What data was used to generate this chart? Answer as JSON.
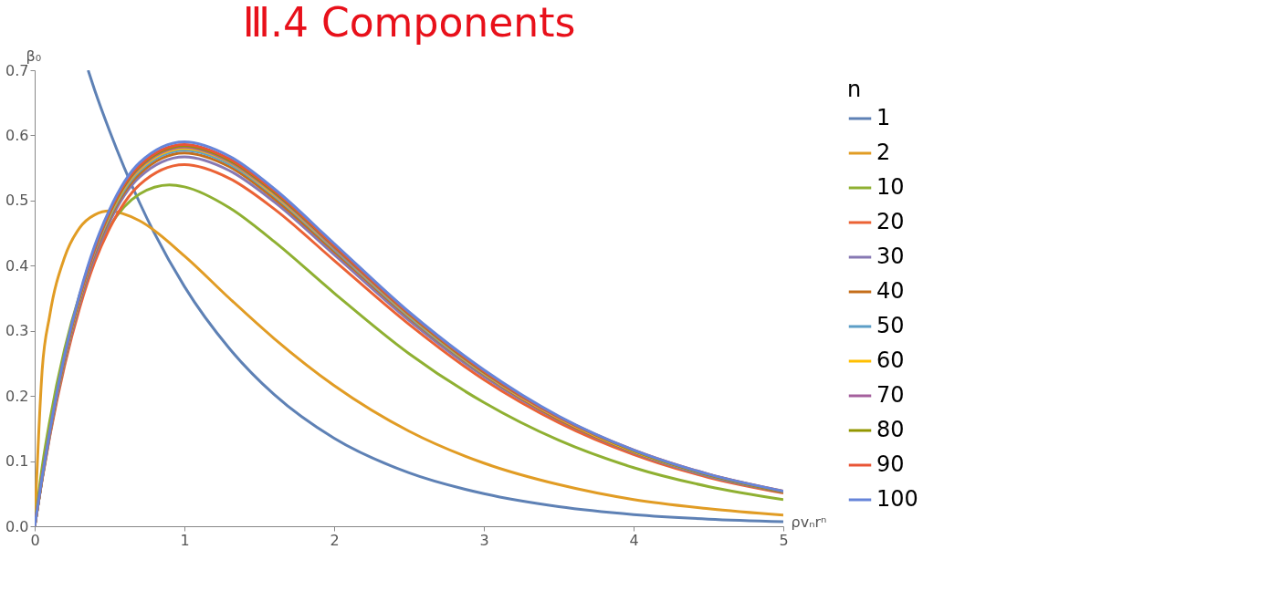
{
  "chart_data": {
    "type": "line",
    "title": "Ⅲ.4 Components",
    "xlabel": "ρvₙrⁿ",
    "ylabel": "β₀",
    "legend_title": "n",
    "legend": "right",
    "x": [
      0,
      0.05,
      0.1,
      0.2,
      0.3,
      0.4,
      0.5,
      0.7,
      1,
      1.3,
      1.6,
      2,
      2.5,
      3,
      3.5,
      4,
      4.5,
      5
    ],
    "xlim": [
      0,
      5
    ],
    "xticks": [
      0,
      1,
      2,
      3,
      4,
      5
    ],
    "ylim": [
      0,
      0.7
    ],
    "yticks": [
      {
        "value": 0,
        "label": "0.0"
      },
      0.1,
      0.2,
      0.3,
      0.4,
      0.5,
      0.6,
      0.7
    ],
    "series": [
      {
        "name": "1",
        "color": "#5e81b5",
        "x": [
          0.357,
          0.4,
          0.5,
          0.7,
          1,
          1.3,
          1.6,
          2,
          2.5,
          3,
          3.5,
          4,
          4.5,
          5
        ],
        "values": [
          0.7,
          0.67,
          0.607,
          0.497,
          0.368,
          0.273,
          0.202,
          0.135,
          0.082,
          0.05,
          0.03,
          0.018,
          0.011,
          0.007
        ]
      },
      {
        "name": "2",
        "color": "#e19c24",
        "values": [
          0,
          0.24,
          0.323,
          0.413,
          0.458,
          0.478,
          0.484,
          0.469,
          0.415,
          0.35,
          0.288,
          0.216,
          0.146,
          0.097,
          0.064,
          0.041,
          0.027,
          0.017
        ]
      },
      {
        "name": "10",
        "color": "#8fb032",
        "x": [
          0,
          0.05,
          0.1,
          0.2,
          0.3,
          0.4,
          0.5,
          0.7,
          0.9,
          1,
          1.3,
          1.6,
          2,
          2.5,
          3,
          3.5,
          4,
          4.5,
          5
        ],
        "values": [
          0,
          0.091,
          0.161,
          0.272,
          0.355,
          0.416,
          0.46,
          0.51,
          0.524,
          0.521,
          0.489,
          0.437,
          0.358,
          0.265,
          0.19,
          0.132,
          0.09,
          0.061,
          0.041
        ]
      },
      {
        "name": "20",
        "color": "#eb6235",
        "values": [
          0,
          0.072,
          0.137,
          0.247,
          0.335,
          0.405,
          0.457,
          0.524,
          0.555,
          0.534,
          0.487,
          0.408,
          0.31,
          0.225,
          0.159,
          0.11,
          0.075,
          0.051
        ]
      },
      {
        "name": "30",
        "color": "#8778b3",
        "values": [
          0,
          0.073,
          0.139,
          0.252,
          0.342,
          0.413,
          0.467,
          0.536,
          0.567,
          0.546,
          0.498,
          0.417,
          0.316,
          0.23,
          0.163,
          0.113,
          0.077,
          0.052
        ]
      },
      {
        "name": "40",
        "color": "#c56e1a",
        "values": [
          0,
          0.074,
          0.141,
          0.255,
          0.346,
          0.418,
          0.472,
          0.541,
          0.573,
          0.552,
          0.503,
          0.422,
          0.32,
          0.233,
          0.164,
          0.114,
          0.078,
          0.052
        ]
      },
      {
        "name": "50",
        "color": "#5d9ec7",
        "values": [
          0,
          0.074,
          0.142,
          0.257,
          0.349,
          0.421,
          0.475,
          0.545,
          0.577,
          0.556,
          0.507,
          0.425,
          0.322,
          0.234,
          0.166,
          0.115,
          0.078,
          0.053
        ]
      },
      {
        "name": "60",
        "color": "#ffbf00",
        "values": [
          0,
          0.075,
          0.143,
          0.258,
          0.35,
          0.423,
          0.478,
          0.548,
          0.58,
          0.559,
          0.509,
          0.427,
          0.324,
          0.235,
          0.166,
          0.115,
          0.079,
          0.053
        ]
      },
      {
        "name": "70",
        "color": "#a5609d",
        "values": [
          0,
          0.075,
          0.143,
          0.259,
          0.352,
          0.424,
          0.48,
          0.55,
          0.582,
          0.56,
          0.511,
          0.428,
          0.325,
          0.236,
          0.167,
          0.116,
          0.079,
          0.053
        ]
      },
      {
        "name": "80",
        "color": "#929600",
        "values": [
          0,
          0.075,
          0.144,
          0.26,
          0.353,
          0.426,
          0.481,
          0.552,
          0.584,
          0.562,
          0.513,
          0.43,
          0.326,
          0.237,
          0.168,
          0.116,
          0.079,
          0.053
        ]
      },
      {
        "name": "90",
        "color": "#e95536",
        "values": [
          0,
          0.076,
          0.144,
          0.261,
          0.354,
          0.427,
          0.483,
          0.554,
          0.586,
          0.564,
          0.515,
          0.431,
          0.327,
          0.238,
          0.168,
          0.117,
          0.08,
          0.054
        ]
      },
      {
        "name": "100",
        "color": "#6685d9",
        "values": [
          0,
          0.076,
          0.145,
          0.263,
          0.356,
          0.43,
          0.486,
          0.558,
          0.59,
          0.568,
          0.518,
          0.434,
          0.329,
          0.24,
          0.169,
          0.117,
          0.08,
          0.054
        ]
      }
    ]
  }
}
